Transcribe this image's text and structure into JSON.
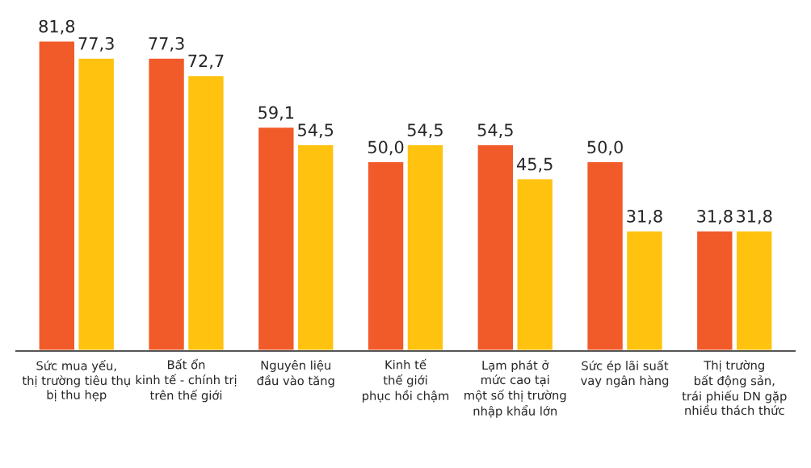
{
  "chart_data": {
    "type": "bar",
    "categories": [
      "Sức mua yếu,\nthị trường tiêu thụ\nbị thu hẹp",
      "Bất ổn\nkinh tế - chính trị\ntrên thế giới",
      "Nguyên liệu\nđầu vào tăng",
      "Kinh tế\nthế giới\nphục hồi chậm",
      "Lạm phát ở\nmức cao tại\nmột số thị trường\nnhập khẩu lớn",
      "Sức ép lãi suất\nvay ngân hàng",
      "Thị trường\nbất động sản,\ntrái phiếu DN gặp\nnhiều thách thức"
    ],
    "series": [
      {
        "color": "#f15a29",
        "values": [
          81.8,
          77.3,
          59.1,
          50.0,
          54.5,
          50.0,
          31.8
        ],
        "value_labels": [
          "81,8",
          "77,3",
          "59,1",
          "50,0",
          "54,5",
          "50,0",
          "31,8"
        ]
      },
      {
        "color": "#ffc20e",
        "values": [
          77.3,
          72.7,
          54.5,
          54.5,
          45.5,
          31.8,
          31.8
        ],
        "value_labels": [
          "77,3",
          "72,7",
          "54,5",
          "54,5",
          "45,5",
          "31,8",
          "31,8"
        ]
      }
    ],
    "grid": false,
    "legend": false
  }
}
